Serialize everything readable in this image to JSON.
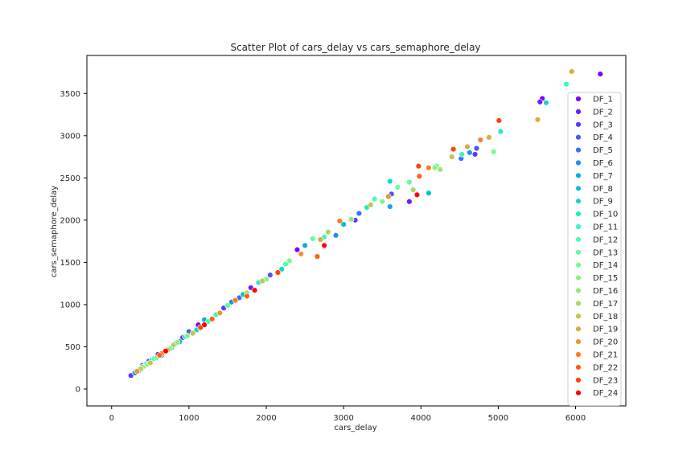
{
  "chart_data": {
    "type": "scatter",
    "title": "Scatter Plot of cars_delay vs cars_semaphore_delay",
    "xlabel": "cars_delay",
    "ylabel": "cars_semaphore_delay",
    "xlim": [
      -320,
      6650
    ],
    "ylim": [
      -200,
      3950
    ],
    "x_ticks": [
      0,
      1000,
      2000,
      3000,
      4000,
      5000,
      6000
    ],
    "y_ticks": [
      0,
      500,
      1000,
      1500,
      2000,
      2500,
      3000,
      3500
    ],
    "grid": false,
    "legend_placement": "right",
    "colormap": "rainbow",
    "series": [
      {
        "name": "DF_1",
        "color": "#8000ff",
        "x": [
          6320,
          5570,
          2400,
          1120,
          600
        ],
        "y": [
          3730,
          3440,
          1650,
          760,
          410
        ]
      },
      {
        "name": "DF_2",
        "color": "#6e1cfe",
        "x": [
          5540,
          3850,
          1800,
          920,
          400
        ],
        "y": [
          3400,
          2220,
          1200,
          610,
          280
        ]
      },
      {
        "name": "DF_3",
        "color": "#5a39fc",
        "x": [
          4700,
          3150,
          1450,
          700,
          250
        ],
        "y": [
          2780,
          2000,
          960,
          450,
          160
        ]
      },
      {
        "name": "DF_4",
        "color": "#4856f8",
        "x": [
          4720,
          3620,
          2050,
          1000,
          480
        ],
        "y": [
          2850,
          2310,
          1350,
          680,
          330
        ]
      },
      {
        "name": "DF_5",
        "color": "#3672f2",
        "x": [
          4520,
          3200,
          1650,
          830,
          320
        ],
        "y": [
          2730,
          2080,
          1080,
          540,
          210
        ]
      },
      {
        "name": "DF_6",
        "color": "#238eec",
        "x": [
          4630,
          2900,
          1550,
          780,
          360
        ],
        "y": [
          2800,
          1820,
          1030,
          490,
          220
        ]
      },
      {
        "name": "DF_7",
        "color": "#11a8e3",
        "x": [
          3600,
          2500,
          1200,
          650,
          300
        ],
        "y": [
          2160,
          1700,
          820,
          400,
          190
        ]
      },
      {
        "name": "DF_8",
        "color": "#01c0da",
        "x": [
          4100,
          3000,
          1700,
          880,
          420
        ],
        "y": [
          2320,
          1950,
          1120,
          560,
          270
        ]
      },
      {
        "name": "DF_9",
        "color": "#13d6d0",
        "x": [
          5620,
          3600,
          2200,
          1100,
          520
        ],
        "y": [
          3390,
          2460,
          1420,
          700,
          340
        ]
      },
      {
        "name": "DF_10",
        "color": "#25e9c4",
        "x": [
          5030,
          3300,
          1900,
          950,
          450
        ],
        "y": [
          3050,
          2150,
          1260,
          620,
          300
        ]
      },
      {
        "name": "DF_11",
        "color": "#38f8b7",
        "x": [
          5880,
          4530,
          2750,
          1350,
          700
        ],
        "y": [
          3610,
          2780,
          1800,
          880,
          450
        ]
      },
      {
        "name": "DF_12",
        "color": "#4cfdaa",
        "x": [
          4200,
          3400,
          2250,
          1250,
          550
        ],
        "y": [
          2640,
          2250,
          1480,
          800,
          360
        ]
      },
      {
        "name": "DF_13",
        "color": "#60fe9c",
        "x": [
          3850,
          2600,
          1500,
          760,
          350
        ],
        "y": [
          2450,
          1780,
          990,
          480,
          230
        ]
      },
      {
        "name": "DF_14",
        "color": "#74fe8d",
        "x": [
          4940,
          3700,
          2300,
          1150,
          580
        ],
        "y": [
          2810,
          2390,
          1520,
          720,
          370
        ]
      },
      {
        "name": "DF_15",
        "color": "#88f37e",
        "x": [
          4180,
          3500,
          2000,
          980,
          460
        ],
        "y": [
          2620,
          2220,
          1300,
          630,
          290
        ]
      },
      {
        "name": "DF_16",
        "color": "#9ce66f",
        "x": [
          4250,
          3100,
          1750,
          850,
          400
        ],
        "y": [
          2600,
          2010,
          1140,
          550,
          260
        ]
      },
      {
        "name": "DF_17",
        "color": "#b0d660",
        "x": [
          3900,
          2800,
          1600,
          800,
          380
        ],
        "y": [
          2360,
          1860,
          1050,
          520,
          240
        ]
      },
      {
        "name": "DF_18",
        "color": "#c4c351",
        "x": [
          4400,
          3350,
          1950,
          1050,
          500
        ],
        "y": [
          2750,
          2180,
          1280,
          660,
          310
        ]
      },
      {
        "name": "DF_19",
        "color": "#d8ad41",
        "x": [
          5950,
          5510,
          4880,
          4600,
          2700
        ],
        "y": [
          3760,
          3190,
          2980,
          2870,
          1770
        ]
      },
      {
        "name": "DF_20",
        "color": "#ec9532",
        "x": [
          3580,
          2450,
          1400,
          720,
          330
        ],
        "y": [
          2280,
          1600,
          900,
          460,
          210
        ]
      },
      {
        "name": "DF_21",
        "color": "#ff7b22",
        "x": [
          4770,
          4100,
          2950,
          1600,
          650
        ],
        "y": [
          2950,
          2620,
          1990,
          1050,
          420
        ]
      },
      {
        "name": "DF_22",
        "color": "#ff5f12",
        "x": [
          3980,
          2660,
          1750,
          1300,
          620
        ],
        "y": [
          2520,
          1570,
          1100,
          830,
          400
        ]
      },
      {
        "name": "DF_23",
        "color": "#ff4200",
        "x": [
          5010,
          4420,
          3970,
          2150,
          1150
        ],
        "y": [
          3180,
          2840,
          2640,
          1380,
          730
        ]
      },
      {
        "name": "DF_24",
        "color": "#ff0000",
        "x": [
          3950,
          2750,
          1850,
          1200,
          700
        ],
        "y": [
          2300,
          1700,
          1170,
          760,
          450
        ]
      }
    ]
  }
}
